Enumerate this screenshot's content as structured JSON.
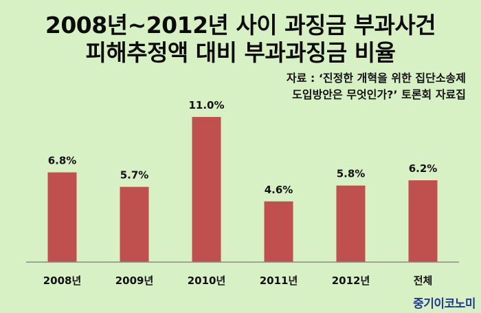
{
  "title_line1": "2008년~2012년 사이 과징금 부과사건",
  "title_line2": "피해추정액 대비 부과과징금 비율",
  "source_line1": "자료 : ‘진정한 개혁을 위한 집단소송제",
  "source_line2": "도입방안은 무엇인가?’ 토론회 자료집",
  "logo": "중기이코노미",
  "colors": {
    "bar": "#c0504d",
    "axis": "#8a8a8a",
    "background": "#d7f0c4"
  },
  "chart_data": {
    "type": "bar",
    "categories": [
      "2008년",
      "2009년",
      "2010년",
      "2011년",
      "2012년",
      "전체"
    ],
    "values": [
      6.8,
      5.7,
      11.0,
      4.6,
      5.8,
      6.2
    ],
    "value_labels": [
      "6.8%",
      "5.7%",
      "11.0%",
      "4.6%",
      "5.8%",
      "6.2%"
    ],
    "unit": "%",
    "ylim": [
      0,
      11.0
    ],
    "grid": false,
    "legend": "none"
  }
}
